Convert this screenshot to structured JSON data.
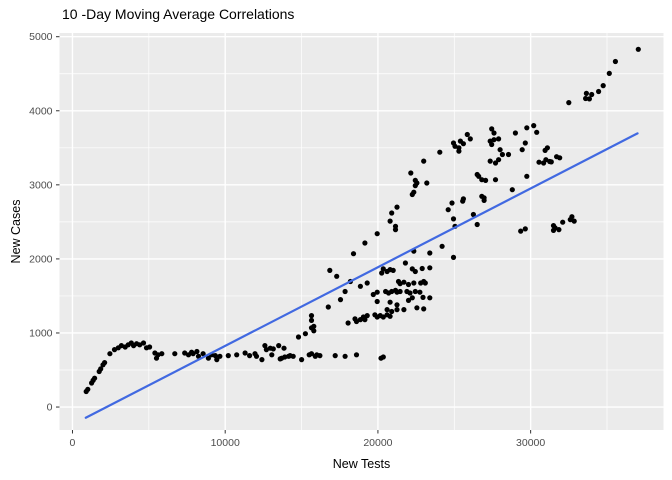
{
  "chart_data": {
    "type": "scatter",
    "title": "10 -Day Moving Average Correlations",
    "xlabel": "New Tests",
    "ylabel": "New Cases",
    "x_ticks": [
      0,
      10000,
      20000,
      30000
    ],
    "x_minor_ticks": [
      5000,
      15000,
      25000,
      35000
    ],
    "y_ticks": [
      0,
      1000,
      2000,
      3000,
      4000,
      5000
    ],
    "y_minor_ticks": [
      500,
      1500,
      2500,
      3500,
      4500
    ],
    "xlim": [
      -850,
      38700
    ],
    "ylim": [
      -310,
      5050
    ],
    "grid": "white major and minor on gray panel",
    "legend": "none",
    "colors": {
      "panel_bg": "#EBEBEB",
      "grid": "#FFFFFF",
      "point": "#000000",
      "trend_line": "#4169E1",
      "tick_text": "#4D4D4D",
      "axis_title": "#000000"
    },
    "trend_line": {
      "type": "linear",
      "x1": 870,
      "y1": -145,
      "x2": 37000,
      "y2": 3695
    },
    "points": [
      [
        900,
        210
      ],
      [
        1000,
        240
      ],
      [
        1250,
        325
      ],
      [
        1350,
        360
      ],
      [
        1450,
        390
      ],
      [
        1750,
        480
      ],
      [
        1850,
        515
      ],
      [
        2000,
        570
      ],
      [
        2100,
        600
      ],
      [
        2450,
        720
      ],
      [
        2750,
        775
      ],
      [
        3000,
        800
      ],
      [
        3200,
        830
      ],
      [
        3450,
        810
      ],
      [
        3650,
        840
      ],
      [
        3850,
        865
      ],
      [
        4000,
        830
      ],
      [
        4200,
        855
      ],
      [
        4400,
        840
      ],
      [
        4650,
        865
      ],
      [
        4850,
        800
      ],
      [
        5050,
        810
      ],
      [
        5400,
        730
      ],
      [
        5500,
        660
      ],
      [
        5600,
        705
      ],
      [
        5850,
        720
      ],
      [
        6700,
        720
      ],
      [
        7350,
        730
      ],
      [
        7600,
        705
      ],
      [
        7800,
        740
      ],
      [
        7900,
        720
      ],
      [
        8150,
        750
      ],
      [
        8250,
        685
      ],
      [
        8550,
        720
      ],
      [
        8900,
        660
      ],
      [
        9100,
        705
      ],
      [
        9350,
        695
      ],
      [
        9450,
        640
      ],
      [
        9650,
        685
      ],
      [
        10200,
        695
      ],
      [
        10750,
        705
      ],
      [
        11300,
        730
      ],
      [
        11600,
        695
      ],
      [
        11950,
        720
      ],
      [
        12050,
        685
      ],
      [
        12400,
        640
      ],
      [
        12600,
        830
      ],
      [
        12700,
        775
      ],
      [
        12950,
        795
      ],
      [
        13050,
        705
      ],
      [
        13150,
        785
      ],
      [
        13500,
        830
      ],
      [
        13600,
        650
      ],
      [
        13700,
        660
      ],
      [
        13850,
        795
      ],
      [
        13900,
        675
      ],
      [
        14150,
        685
      ],
      [
        14250,
        695
      ],
      [
        14450,
        685
      ],
      [
        15000,
        640
      ],
      [
        15500,
        705
      ],
      [
        15650,
        720
      ],
      [
        15900,
        685
      ],
      [
        16000,
        705
      ],
      [
        16200,
        695
      ],
      [
        17200,
        695
      ],
      [
        17850,
        685
      ],
      [
        18600,
        705
      ],
      [
        20200,
        660
      ],
      [
        20350,
        675
      ],
      [
        14800,
        945
      ],
      [
        15250,
        990
      ],
      [
        15800,
        1030
      ],
      [
        15650,
        1235
      ],
      [
        15650,
        1170
      ],
      [
        15800,
        1090
      ],
      [
        15650,
        1070
      ],
      [
        18050,
        1135
      ],
      [
        18500,
        1190
      ],
      [
        18600,
        1155
      ],
      [
        18850,
        1180
      ],
      [
        19050,
        1215
      ],
      [
        19150,
        1180
      ],
      [
        19300,
        1235
      ],
      [
        19800,
        1245
      ],
      [
        19950,
        1215
      ],
      [
        20150,
        1235
      ],
      [
        20350,
        1215
      ],
      [
        20600,
        1245
      ],
      [
        20800,
        1225
      ],
      [
        17550,
        1450
      ],
      [
        16750,
        1350
      ],
      [
        19950,
        1425
      ],
      [
        20800,
        1415
      ],
      [
        21250,
        1380
      ],
      [
        21700,
        1315
      ],
      [
        22000,
        1440
      ],
      [
        22250,
        1475
      ],
      [
        22550,
        1340
      ],
      [
        23000,
        1325
      ],
      [
        23400,
        1475
      ],
      [
        20600,
        1315
      ],
      [
        20900,
        1290
      ],
      [
        21250,
        1315
      ],
      [
        22950,
        1480
      ],
      [
        18200,
        1695
      ],
      [
        17850,
        1560
      ],
      [
        18850,
        1630
      ],
      [
        19300,
        1675
      ],
      [
        19700,
        1520
      ],
      [
        19950,
        1550
      ],
      [
        20500,
        1560
      ],
      [
        20700,
        1540
      ],
      [
        20900,
        1560
      ],
      [
        21150,
        1575
      ],
      [
        21250,
        1550
      ],
      [
        21450,
        1560
      ],
      [
        21900,
        1560
      ],
      [
        22100,
        1540
      ],
      [
        22450,
        1560
      ],
      [
        22750,
        1550
      ],
      [
        21350,
        1695
      ],
      [
        21450,
        1665
      ],
      [
        21700,
        1685
      ],
      [
        22000,
        1655
      ],
      [
        22350,
        1675
      ],
      [
        23000,
        1695
      ],
      [
        22800,
        1675
      ],
      [
        23100,
        1675
      ],
      [
        16850,
        1845
      ],
      [
        17300,
        1765
      ],
      [
        20350,
        1865
      ],
      [
        20600,
        1830
      ],
      [
        20800,
        1855
      ],
      [
        20250,
        1810
      ],
      [
        21000,
        1845
      ],
      [
        22250,
        1865
      ],
      [
        22450,
        1830
      ],
      [
        22900,
        1870
      ],
      [
        23400,
        1880
      ],
      [
        21800,
        1945
      ],
      [
        19950,
        2340
      ],
      [
        21150,
        2395
      ],
      [
        19150,
        2215
      ],
      [
        18400,
        2070
      ],
      [
        24200,
        2170
      ],
      [
        24950,
        2020
      ],
      [
        23400,
        2080
      ],
      [
        22350,
        2105
      ],
      [
        20800,
        2510
      ],
      [
        21150,
        2440
      ],
      [
        24950,
        2540
      ],
      [
        25050,
        2440
      ],
      [
        26250,
        2600
      ],
      [
        26500,
        2465
      ],
      [
        21250,
        2700
      ],
      [
        20900,
        2620
      ],
      [
        22250,
        2870
      ],
      [
        22350,
        2900
      ],
      [
        24850,
        2755
      ],
      [
        25550,
        2780
      ],
      [
        25600,
        2810
      ],
      [
        24600,
        2665
      ],
      [
        22450,
        3060
      ],
      [
        22550,
        3025
      ],
      [
        22450,
        2990
      ],
      [
        23200,
        3025
      ],
      [
        22150,
        3160
      ],
      [
        23000,
        3320
      ],
      [
        26800,
        2845
      ],
      [
        26950,
        2825
      ],
      [
        26950,
        2790
      ],
      [
        26600,
        3115
      ],
      [
        26500,
        3140
      ],
      [
        28800,
        2935
      ],
      [
        29750,
        3115
      ],
      [
        27350,
        3320
      ],
      [
        27700,
        3295
      ],
      [
        27900,
        3340
      ],
      [
        26800,
        3070
      ],
      [
        27050,
        3060
      ],
      [
        27700,
        3070
      ],
      [
        25850,
        3680
      ],
      [
        26050,
        3620
      ],
      [
        25400,
        3590
      ],
      [
        25600,
        3555
      ],
      [
        24950,
        3565
      ],
      [
        25050,
        3520
      ],
      [
        25300,
        3500
      ],
      [
        25300,
        3455
      ],
      [
        24050,
        3440
      ],
      [
        27450,
        3755
      ],
      [
        27600,
        3700
      ],
      [
        27350,
        3590
      ],
      [
        27600,
        3610
      ],
      [
        27450,
        3545
      ],
      [
        27900,
        3620
      ],
      [
        28000,
        3475
      ],
      [
        28150,
        3410
      ],
      [
        28550,
        3410
      ],
      [
        29000,
        3700
      ],
      [
        29750,
        3770
      ],
      [
        30200,
        3800
      ],
      [
        30400,
        3710
      ],
      [
        29450,
        3475
      ],
      [
        29650,
        3565
      ],
      [
        30550,
        3305
      ],
      [
        30850,
        3295
      ],
      [
        30950,
        3465
      ],
      [
        31100,
        3500
      ],
      [
        31000,
        3340
      ],
      [
        31250,
        3315
      ],
      [
        31350,
        3310
      ],
      [
        31700,
        3380
      ],
      [
        31900,
        3365
      ],
      [
        32500,
        4110
      ],
      [
        33600,
        4165
      ],
      [
        33850,
        4160
      ],
      [
        33650,
        4235
      ],
      [
        34000,
        4220
      ],
      [
        34450,
        4260
      ],
      [
        34750,
        4340
      ],
      [
        35150,
        4505
      ],
      [
        35550,
        4665
      ],
      [
        37050,
        4830
      ],
      [
        29350,
        2375
      ],
      [
        29650,
        2405
      ],
      [
        31500,
        2450
      ],
      [
        31600,
        2420
      ],
      [
        31500,
        2385
      ],
      [
        31850,
        2395
      ],
      [
        32100,
        2495
      ],
      [
        32600,
        2530
      ],
      [
        32850,
        2510
      ],
      [
        32700,
        2570
      ]
    ]
  }
}
